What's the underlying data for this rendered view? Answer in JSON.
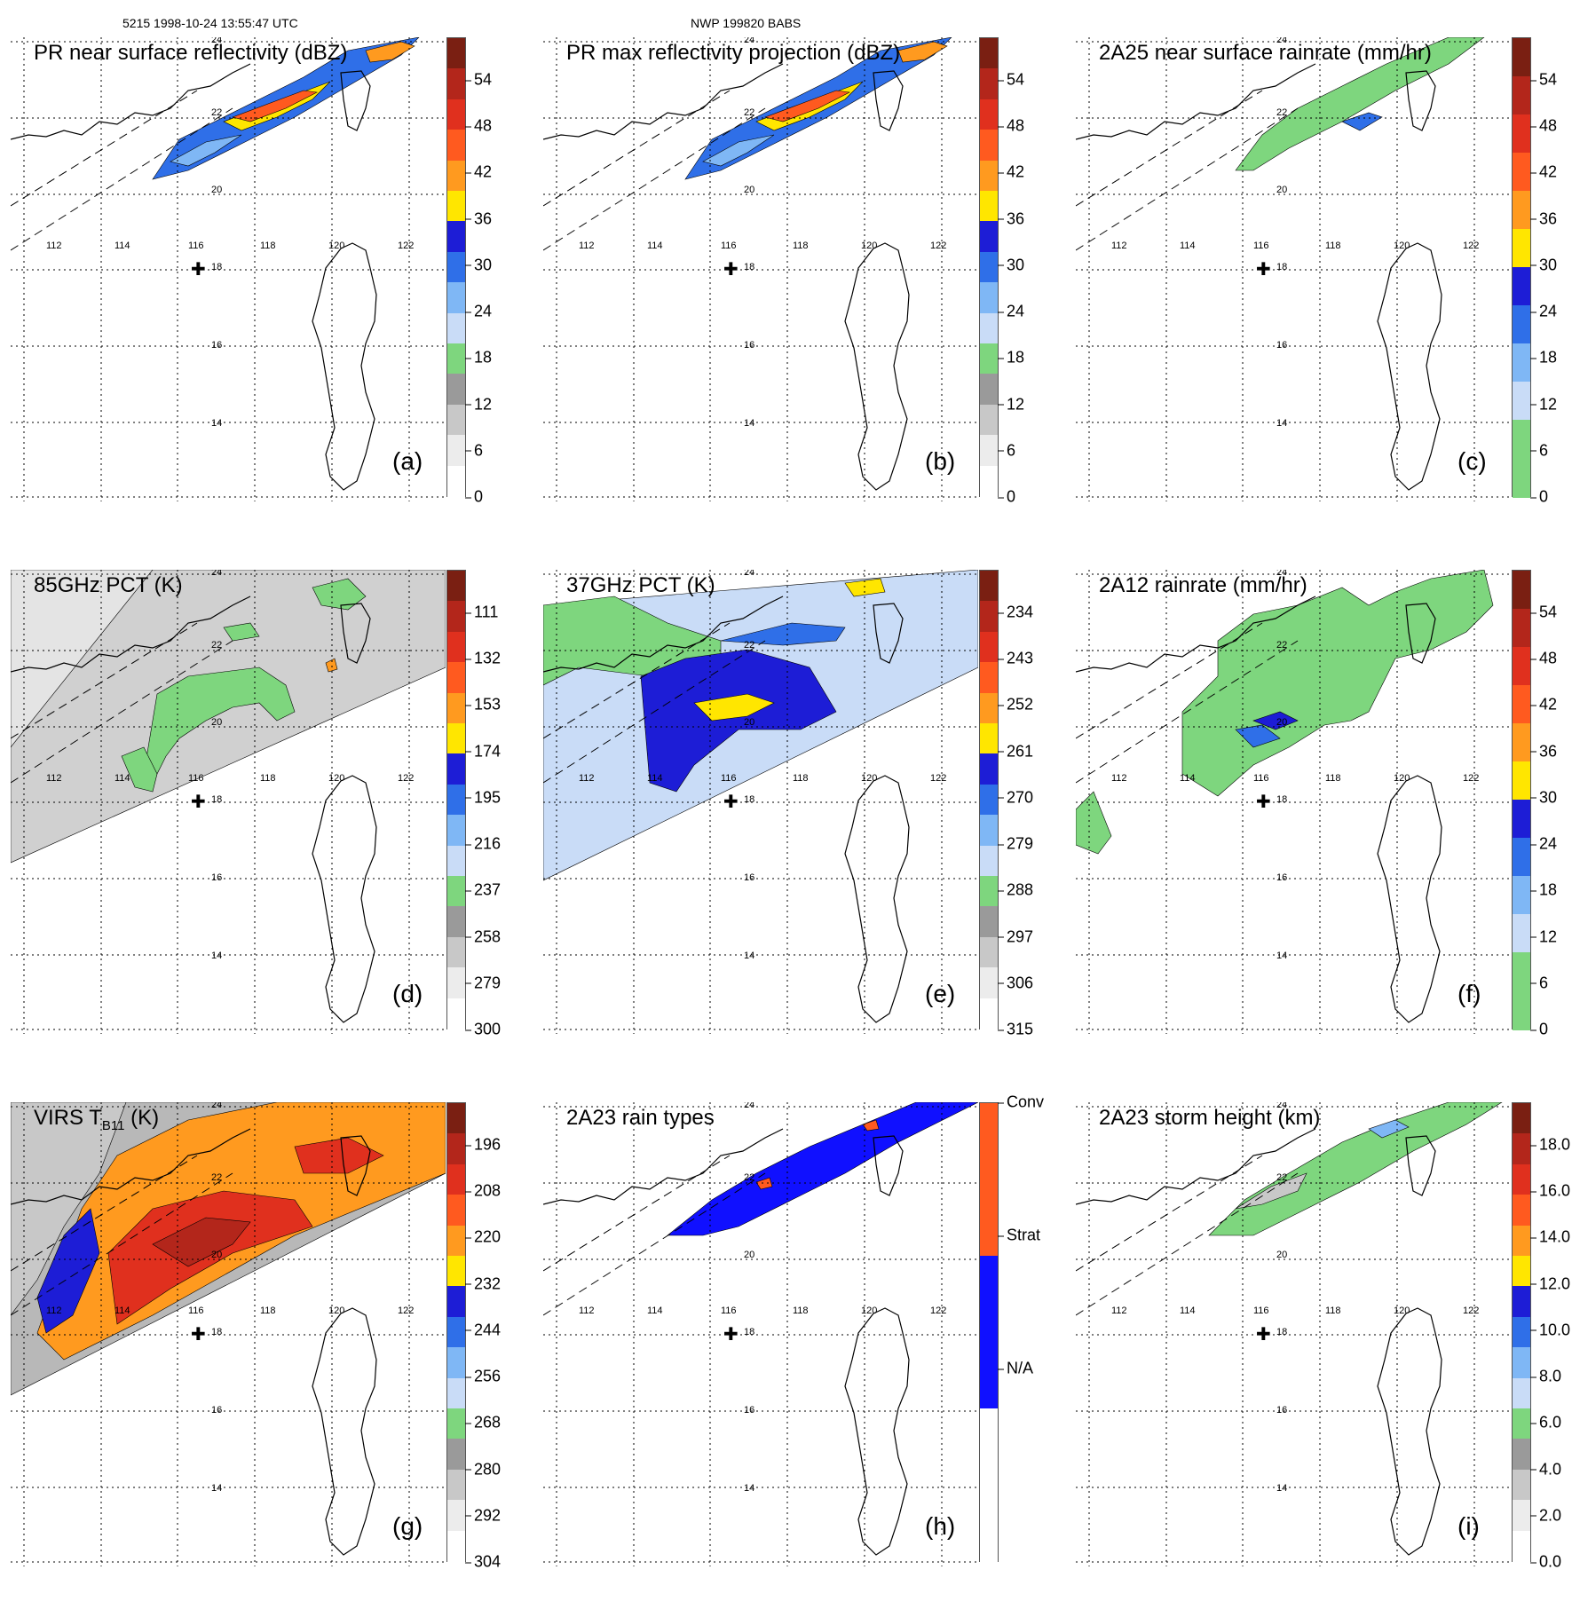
{
  "header": {
    "orbit_line": "5215 1998-10-24 13:55:47 UTC",
    "product_line": "NWP 199820 BABS"
  },
  "map": {
    "lon_labels": [
      "112",
      "114",
      "116",
      "118",
      "120",
      "122"
    ],
    "lat_labels": [
      "24",
      "22",
      "20",
      "18",
      "16",
      "14"
    ]
  },
  "panels": [
    {
      "id": "a",
      "title": "PR near surface reflectivity (dBZ)",
      "letter": "(a)",
      "ticks": [
        "54",
        "48",
        "42",
        "36",
        "30",
        "24",
        "18",
        "12",
        "6",
        "0"
      ],
      "colors": [
        "#7a1f12",
        "#b3261b",
        "#e0301e",
        "#ff5a1f",
        "#ff9a1f",
        "#ffe600",
        "#1d1dd6",
        "#2f6fe8",
        "#7fb7f5",
        "#c9dcf7",
        "#7ed67e",
        "#9a9a9a",
        "#c8c8c8",
        "#ececec",
        "#ffffff"
      ]
    },
    {
      "id": "b",
      "title": "PR max reflectivity projection (dBZ)",
      "letter": "(b)",
      "ticks": [
        "54",
        "48",
        "42",
        "36",
        "30",
        "24",
        "18",
        "12",
        "6",
        "0"
      ],
      "colors": [
        "#7a1f12",
        "#b3261b",
        "#e0301e",
        "#ff5a1f",
        "#ff9a1f",
        "#ffe600",
        "#1d1dd6",
        "#2f6fe8",
        "#7fb7f5",
        "#c9dcf7",
        "#7ed67e",
        "#9a9a9a",
        "#c8c8c8",
        "#ececec",
        "#ffffff"
      ]
    },
    {
      "id": "c",
      "title": "2A25 near surface rainrate (mm/hr)",
      "letter": "(c)",
      "ticks": [
        "54",
        "48",
        "42",
        "36",
        "30",
        "24",
        "18",
        "12",
        "6",
        "0"
      ],
      "colors": [
        "#7a1f12",
        "#b3261b",
        "#e0301e",
        "#ff5a1f",
        "#ff9a1f",
        "#ffe600",
        "#1d1dd6",
        "#2f6fe8",
        "#7fb7f5",
        "#c9dcf7",
        "#7ed67e",
        "#7ed67e"
      ]
    },
    {
      "id": "d",
      "title": "85GHz PCT (K)",
      "letter": "(d)",
      "ticks": [
        "111",
        "132",
        "153",
        "174",
        "195",
        "216",
        "237",
        "258",
        "279",
        "300"
      ],
      "colors": [
        "#7a1f12",
        "#b3261b",
        "#e0301e",
        "#ff5a1f",
        "#ff9a1f",
        "#ffe600",
        "#1d1dd6",
        "#2f6fe8",
        "#7fb7f5",
        "#c9dcf7",
        "#7ed67e",
        "#9a9a9a",
        "#c8c8c8",
        "#ececec",
        "#ffffff"
      ]
    },
    {
      "id": "e",
      "title": "37GHz PCT (K)",
      "letter": "(e)",
      "ticks": [
        "234",
        "243",
        "252",
        "261",
        "270",
        "279",
        "288",
        "297",
        "306",
        "315"
      ],
      "colors": [
        "#7a1f12",
        "#b3261b",
        "#e0301e",
        "#ff5a1f",
        "#ff9a1f",
        "#ffe600",
        "#1d1dd6",
        "#2f6fe8",
        "#7fb7f5",
        "#c9dcf7",
        "#7ed67e",
        "#9a9a9a",
        "#c8c8c8",
        "#ececec",
        "#ffffff"
      ]
    },
    {
      "id": "f",
      "title": "2A12 rainrate (mm/hr)",
      "letter": "(f)",
      "ticks": [
        "54",
        "48",
        "42",
        "36",
        "30",
        "24",
        "18",
        "12",
        "6",
        "0"
      ],
      "colors": [
        "#7a1f12",
        "#b3261b",
        "#e0301e",
        "#ff5a1f",
        "#ff9a1f",
        "#ffe600",
        "#1d1dd6",
        "#2f6fe8",
        "#7fb7f5",
        "#c9dcf7",
        "#7ed67e",
        "#7ed67e"
      ]
    },
    {
      "id": "g",
      "title": "VIRS T",
      "title_sub": "B11",
      "title_tail": " (K)",
      "letter": "(g)",
      "ticks": [
        "196",
        "208",
        "220",
        "232",
        "244",
        "256",
        "268",
        "280",
        "292",
        "304"
      ],
      "colors": [
        "#7a1f12",
        "#b3261b",
        "#e0301e",
        "#ff5a1f",
        "#ff9a1f",
        "#ffe600",
        "#1d1dd6",
        "#2f6fe8",
        "#7fb7f5",
        "#c9dcf7",
        "#7ed67e",
        "#9a9a9a",
        "#c8c8c8",
        "#ececec",
        "#ffffff"
      ]
    },
    {
      "id": "h",
      "title": "2A23 rain types",
      "letter": "(h)",
      "ticks": [
        "Conv",
        "Strat",
        "N/A"
      ],
      "colors": [
        "#ff5a1f",
        "#1010ff",
        "#ffffff"
      ]
    },
    {
      "id": "i",
      "title": "2A23 storm height (km)",
      "letter": "(i)",
      "ticks": [
        "18.0",
        "16.0",
        "14.0",
        "12.0",
        "10.0",
        "8.0",
        "6.0",
        "4.0",
        "2.0",
        "0.0"
      ],
      "colors": [
        "#7a1f12",
        "#b3261b",
        "#e0301e",
        "#ff5a1f",
        "#ff9a1f",
        "#ffe600",
        "#1d1dd6",
        "#2f6fe8",
        "#7fb7f5",
        "#c9dcf7",
        "#7ed67e",
        "#9a9a9a",
        "#c8c8c8",
        "#ececec",
        "#ffffff"
      ]
    }
  ]
}
